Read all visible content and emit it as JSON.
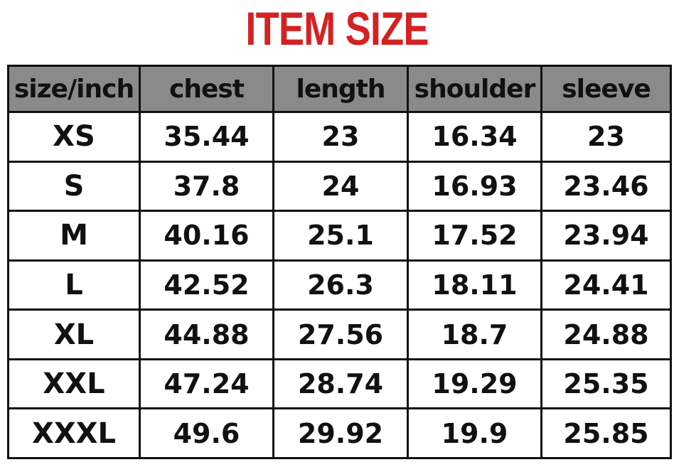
{
  "title": "ITEM SIZE",
  "colors": {
    "title": "#d42222",
    "header_bg": "#8a8a8a"
  },
  "table": {
    "headers": [
      "size/inch",
      "chest",
      "length",
      "shoulder",
      "sleeve"
    ],
    "rows": [
      [
        "XS",
        "35.44",
        "23",
        "16.34",
        "23"
      ],
      [
        "S",
        "37.8",
        "24",
        "16.93",
        "23.46"
      ],
      [
        "M",
        "40.16",
        "25.1",
        "17.52",
        "23.94"
      ],
      [
        "L",
        "42.52",
        "26.3",
        "18.11",
        "24.41"
      ],
      [
        "XL",
        "44.88",
        "27.56",
        "18.7",
        "24.88"
      ],
      [
        "XXL",
        "47.24",
        "28.74",
        "19.29",
        "25.35"
      ],
      [
        "XXXL",
        "49.6",
        "29.92",
        "19.9",
        "25.85"
      ]
    ]
  }
}
